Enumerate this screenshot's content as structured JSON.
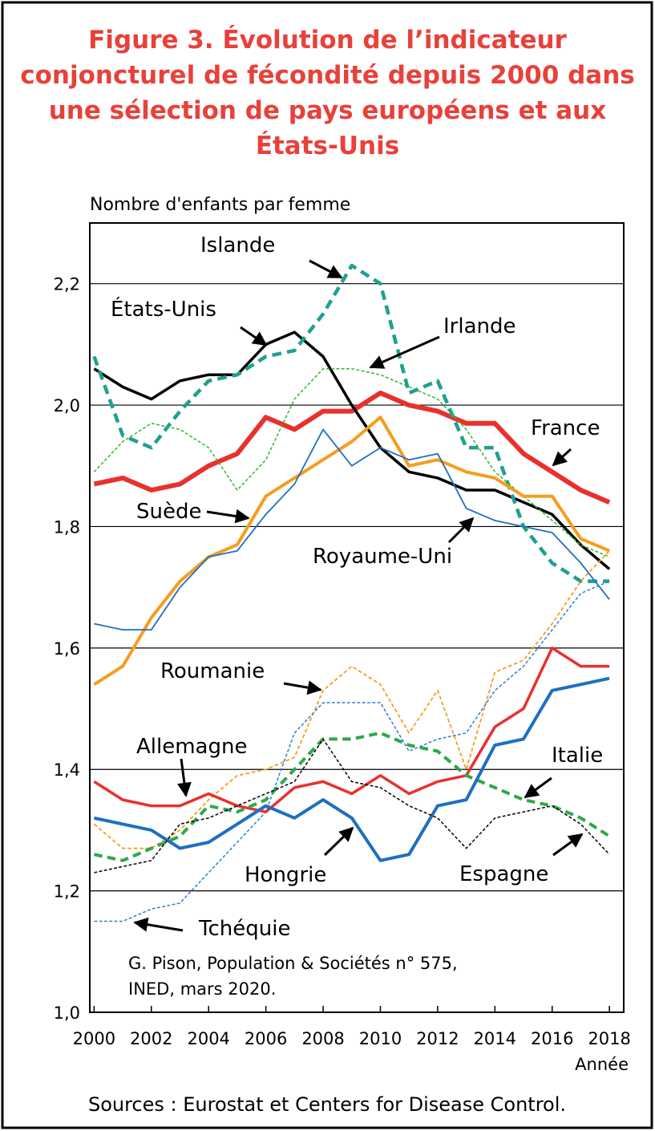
{
  "chart_data": {
    "type": "line",
    "title": "Figure 3. Évolution de l’indicateur conjoncturel de fécondité depuis 2000 dans une sélection de pays européens et aux États-Unis",
    "y_label": "Nombre d'enfants par femme",
    "x_label": "Année",
    "note": [
      "G. Pison, Population & Sociétés n° 575,",
      "INED, mars 2020."
    ],
    "source": "Sources : Eurostat et Centers for Disease Control.",
    "x": [
      2000,
      2001,
      2002,
      2003,
      2004,
      2005,
      2006,
      2007,
      2008,
      2009,
      2010,
      2011,
      2012,
      2013,
      2014,
      2015,
      2016,
      2017,
      2018
    ],
    "xlim": [
      1999.85,
      2018.5
    ],
    "xticks": [
      2000,
      2002,
      2004,
      2006,
      2008,
      2010,
      2012,
      2014,
      2016,
      2018
    ],
    "ylim": [
      1.0,
      2.3
    ],
    "yticks": [
      {
        "value": 1.0,
        "label": "1,0"
      },
      {
        "value": 1.2,
        "label": "1,2"
      },
      {
        "value": 1.4,
        "label": "1,4"
      },
      {
        "value": 1.6,
        "label": "1,6"
      },
      {
        "value": 1.8,
        "label": "1,8"
      },
      {
        "value": 2.0,
        "label": "2,0"
      },
      {
        "value": 2.2,
        "label": "2,2"
      }
    ],
    "grid": true,
    "series": [
      {
        "name": "France",
        "color": "#e8312e",
        "dashed": false,
        "values": [
          1.87,
          1.88,
          1.86,
          1.87,
          1.9,
          1.92,
          1.98,
          1.96,
          1.99,
          1.99,
          2.02,
          2.0,
          1.99,
          1.97,
          1.97,
          1.92,
          1.89,
          1.86,
          1.84
        ]
      },
      {
        "name": "États-Unis",
        "color": "#000000",
        "dashed": false,
        "values": [
          2.06,
          2.03,
          2.01,
          2.04,
          2.05,
          2.05,
          2.1,
          2.12,
          2.08,
          2.0,
          1.93,
          1.89,
          1.88,
          1.86,
          1.86,
          1.84,
          1.82,
          1.77,
          1.73
        ]
      },
      {
        "name": "Islande",
        "color": "#1fa090",
        "dashed": true,
        "values": [
          2.08,
          1.95,
          1.93,
          1.99,
          2.04,
          2.05,
          2.08,
          2.09,
          2.15,
          2.23,
          2.2,
          2.02,
          2.04,
          1.93,
          1.93,
          1.8,
          1.74,
          1.71,
          1.71
        ]
      },
      {
        "name": "Irlande",
        "color": "#2eb82e",
        "dashed": true,
        "values": [
          1.89,
          1.94,
          1.97,
          1.96,
          1.93,
          1.86,
          1.91,
          2.01,
          2.06,
          2.06,
          2.05,
          2.03,
          2.01,
          1.96,
          1.89,
          1.85,
          1.81,
          1.77,
          1.75
        ]
      },
      {
        "name": "Suède",
        "color": "#f59d1e",
        "dashed": false,
        "values": [
          1.54,
          1.57,
          1.65,
          1.71,
          1.75,
          1.77,
          1.85,
          1.88,
          1.91,
          1.94,
          1.98,
          1.9,
          1.91,
          1.89,
          1.88,
          1.85,
          1.85,
          1.78,
          1.76
        ]
      },
      {
        "name": "Royaume-Uni",
        "color": "#1f6fc0",
        "dashed": false,
        "values": [
          1.64,
          1.63,
          1.63,
          1.7,
          1.75,
          1.76,
          1.82,
          1.87,
          1.96,
          1.9,
          1.93,
          1.91,
          1.92,
          1.83,
          1.81,
          1.8,
          1.79,
          1.74,
          1.68
        ]
      },
      {
        "name": "Roumanie",
        "color": "#f59d1e",
        "dashed": true,
        "values": [
          1.31,
          1.27,
          1.27,
          1.3,
          1.35,
          1.39,
          1.4,
          1.42,
          1.53,
          1.57,
          1.54,
          1.46,
          1.53,
          1.4,
          1.56,
          1.58,
          1.64,
          1.71,
          1.76
        ]
      },
      {
        "name": "Tchéquie",
        "color": "#2c7fd0",
        "dashed": true,
        "values": [
          1.15,
          1.15,
          1.17,
          1.18,
          1.23,
          1.28,
          1.33,
          1.46,
          1.51,
          1.51,
          1.51,
          1.43,
          1.45,
          1.46,
          1.53,
          1.57,
          1.63,
          1.69,
          1.71
        ]
      },
      {
        "name": "Allemagne",
        "color": "#e8312e",
        "dashed": false,
        "values": [
          1.38,
          1.35,
          1.34,
          1.34,
          1.36,
          1.34,
          1.33,
          1.37,
          1.38,
          1.36,
          1.39,
          1.36,
          1.38,
          1.39,
          1.47,
          1.5,
          1.6,
          1.57,
          1.57
        ]
      },
      {
        "name": "Italie",
        "color": "#2ea84a",
        "dashed": true,
        "values": [
          1.26,
          1.25,
          1.27,
          1.29,
          1.34,
          1.33,
          1.35,
          1.4,
          1.45,
          1.45,
          1.46,
          1.44,
          1.43,
          1.39,
          1.37,
          1.35,
          1.34,
          1.32,
          1.29
        ]
      },
      {
        "name": "Hongrie",
        "color": "#1f6fc0",
        "dashed": false,
        "values": [
          1.32,
          1.31,
          1.3,
          1.27,
          1.28,
          1.31,
          1.34,
          1.32,
          1.35,
          1.32,
          1.25,
          1.26,
          1.34,
          1.35,
          1.44,
          1.45,
          1.53,
          1.54,
          1.55
        ]
      },
      {
        "name": "Espagne",
        "color": "#000000",
        "dashed": true,
        "values": [
          1.23,
          1.24,
          1.25,
          1.31,
          1.32,
          1.34,
          1.36,
          1.38,
          1.45,
          1.38,
          1.37,
          1.34,
          1.32,
          1.27,
          1.32,
          1.33,
          1.34,
          1.31,
          1.26
        ]
      }
    ]
  }
}
